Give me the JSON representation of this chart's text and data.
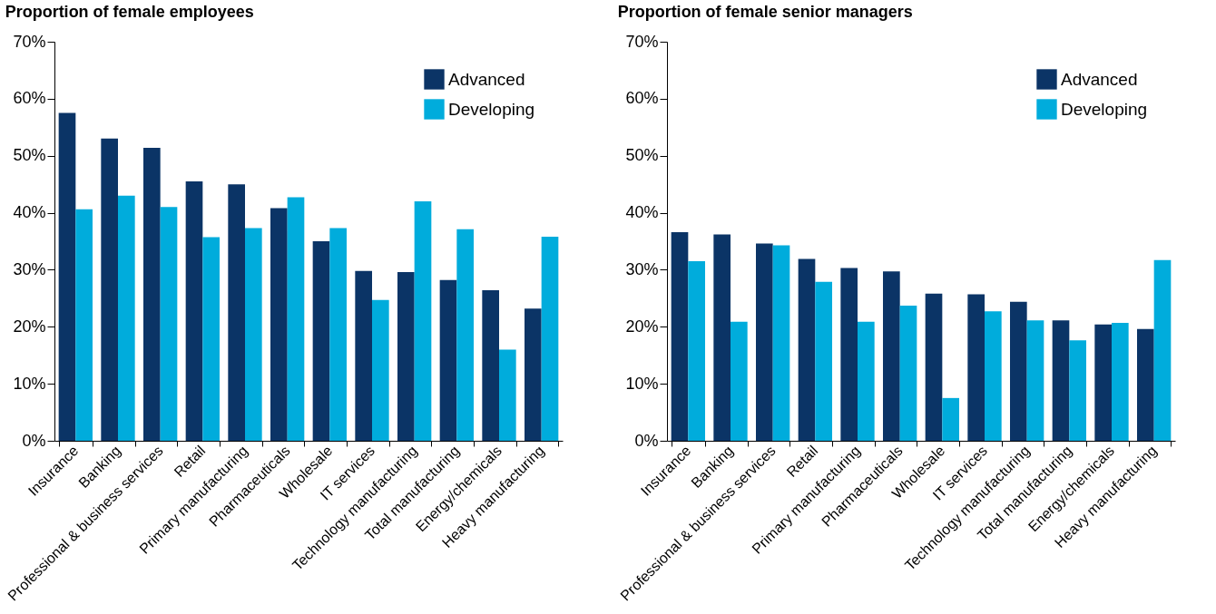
{
  "chart_data": [
    {
      "type": "bar",
      "title": "Proportion of female employees",
      "categories": [
        "Insurance",
        "Banking",
        "Professional & business services",
        "Retail",
        "Primary manufacturing",
        "Pharmaceuticals",
        "Wholesale",
        "IT services",
        "Technology manufacturing",
        "Total manufacturing",
        "Energy/chemicals",
        "Heavy manufacturing"
      ],
      "series": [
        {
          "name": "Advanced",
          "color": "#0b3466",
          "values": [
            57.5,
            53.0,
            51.4,
            45.5,
            45.0,
            40.8,
            35.0,
            29.8,
            29.6,
            28.2,
            26.4,
            23.2
          ]
        },
        {
          "name": "Developing",
          "color": "#00acdc",
          "values": [
            40.6,
            43.0,
            41.0,
            35.7,
            37.3,
            42.7,
            37.3,
            24.7,
            42.0,
            37.1,
            16.0,
            35.8
          ]
        }
      ],
      "ylim": [
        0,
        70
      ],
      "yticks": [
        {
          "value": 0,
          "label": "0%"
        },
        {
          "value": 10,
          "label": "10%"
        },
        {
          "value": 20,
          "label": "20%"
        },
        {
          "value": 30,
          "label": "30%"
        },
        {
          "value": 40,
          "label": "40%"
        },
        {
          "value": 50,
          "label": "50%"
        },
        {
          "value": 60,
          "label": "60%"
        },
        {
          "value": 70,
          "label": "70%"
        }
      ],
      "grid": false,
      "legend": "top right"
    },
    {
      "type": "bar",
      "title": "Proportion of female senior managers",
      "categories": [
        "Insurance",
        "Banking",
        "Professional & business services",
        "Retail",
        "Primary manufacturing",
        "Pharmaceuticals",
        "Wholesale",
        "IT services",
        "Technology manufacturing",
        "Total manufacturing",
        "Energy/chemicals",
        "Heavy manufacturing"
      ],
      "series": [
        {
          "name": "Advanced",
          "color": "#0b3466",
          "values": [
            36.6,
            36.2,
            34.6,
            31.9,
            30.3,
            29.7,
            25.8,
            25.7,
            24.4,
            21.1,
            20.4,
            19.6
          ]
        },
        {
          "name": "Developing",
          "color": "#00acdc",
          "values": [
            31.5,
            20.9,
            34.3,
            27.9,
            20.9,
            23.7,
            7.5,
            22.7,
            21.1,
            17.6,
            20.7,
            31.7
          ]
        }
      ],
      "ylim": [
        0,
        70
      ],
      "yticks": [
        {
          "value": 0,
          "label": "0%"
        },
        {
          "value": 10,
          "label": "10%"
        },
        {
          "value": 20,
          "label": "20%"
        },
        {
          "value": 30,
          "label": "30%"
        },
        {
          "value": 40,
          "label": "40%"
        },
        {
          "value": 50,
          "label": "50%"
        },
        {
          "value": 60,
          "label": "60%"
        },
        {
          "value": 70,
          "label": "70%"
        }
      ],
      "grid": false,
      "legend": "top right"
    }
  ]
}
